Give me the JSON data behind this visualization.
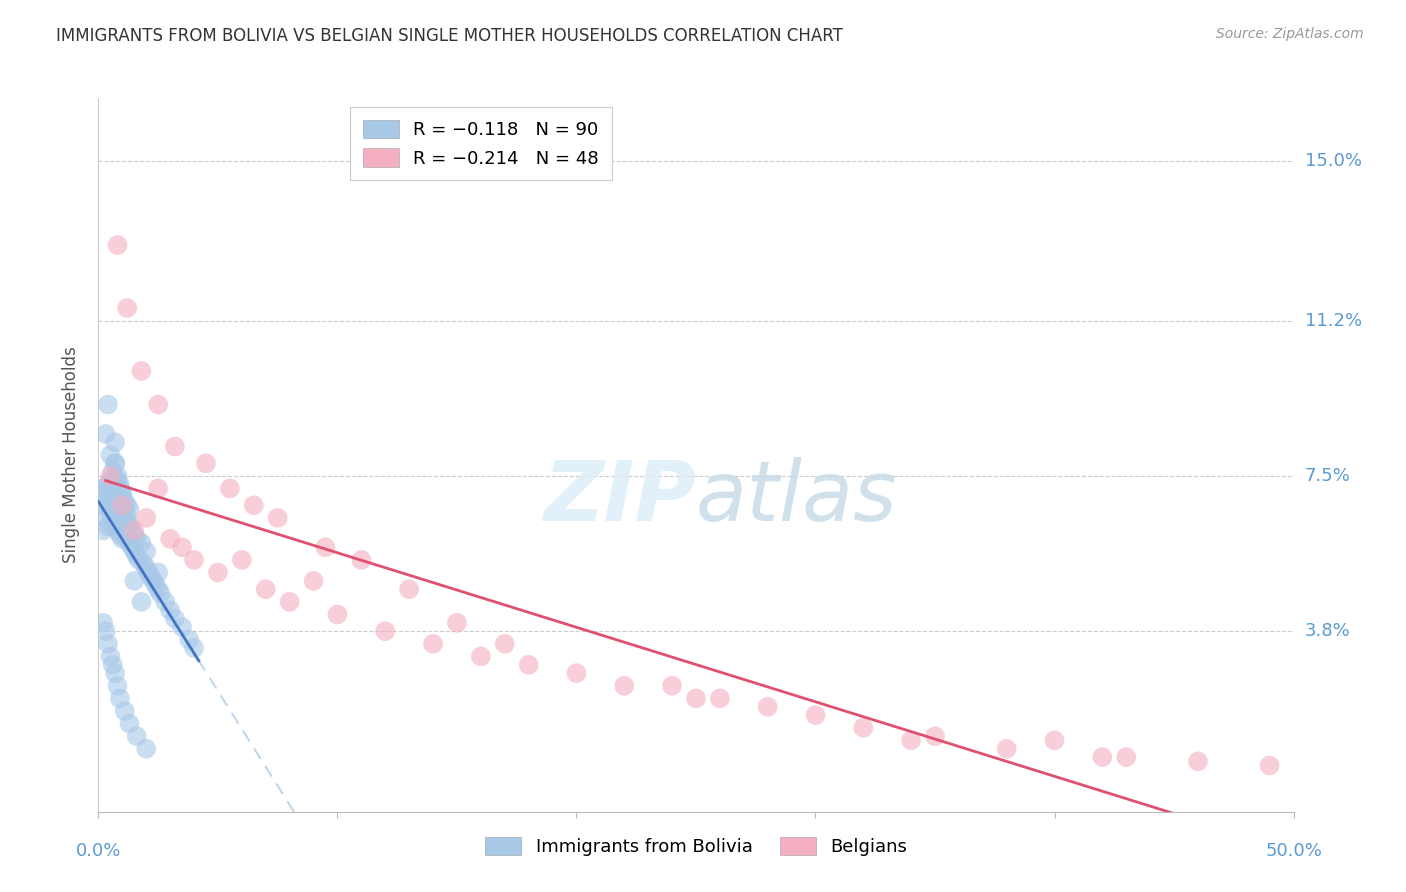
{
  "title": "IMMIGRANTS FROM BOLIVIA VS BELGIAN SINGLE MOTHER HOUSEHOLDS CORRELATION CHART",
  "source": "Source: ZipAtlas.com",
  "ylabel": "Single Mother Households",
  "ytick_labels": [
    "15.0%",
    "11.2%",
    "7.5%",
    "3.8%"
  ],
  "ytick_values": [
    0.15,
    0.112,
    0.075,
    0.038
  ],
  "xlim": [
    0.0,
    0.5
  ],
  "ylim": [
    -0.005,
    0.165
  ],
  "legend_line1": "R = −0.118   N = 90",
  "legend_line2": "R = −0.214   N = 48",
  "watermark_zip": "ZIP",
  "watermark_atlas": "atlas",
  "blue_color": "#a8c8e8",
  "pink_color": "#f4b0c0",
  "blue_line_color": "#4472c4",
  "pink_line_color": "#e05070",
  "blue_dash_color": "#c0d8ee",
  "title_color": "#333333",
  "axis_label_color": "#5b9bd5",
  "grid_color": "#cccccc",
  "bolivia_x": [
    0.001,
    0.002,
    0.002,
    0.003,
    0.003,
    0.004,
    0.004,
    0.004,
    0.005,
    0.005,
    0.005,
    0.005,
    0.006,
    0.006,
    0.006,
    0.006,
    0.007,
    0.007,
    0.007,
    0.007,
    0.007,
    0.008,
    0.008,
    0.008,
    0.008,
    0.009,
    0.009,
    0.009,
    0.009,
    0.01,
    0.01,
    0.01,
    0.01,
    0.011,
    0.011,
    0.012,
    0.012,
    0.012,
    0.013,
    0.013,
    0.013,
    0.014,
    0.014,
    0.015,
    0.015,
    0.016,
    0.016,
    0.017,
    0.018,
    0.019,
    0.02,
    0.02,
    0.021,
    0.022,
    0.023,
    0.024,
    0.025,
    0.025,
    0.026,
    0.028,
    0.03,
    0.032,
    0.035,
    0.038,
    0.04,
    0.003,
    0.004,
    0.005,
    0.006,
    0.007,
    0.007,
    0.008,
    0.009,
    0.01,
    0.011,
    0.012,
    0.015,
    0.018,
    0.002,
    0.003,
    0.004,
    0.005,
    0.006,
    0.007,
    0.008,
    0.009,
    0.011,
    0.013,
    0.016,
    0.02
  ],
  "bolivia_y": [
    0.068,
    0.062,
    0.072,
    0.065,
    0.071,
    0.068,
    0.063,
    0.073,
    0.069,
    0.066,
    0.071,
    0.074,
    0.063,
    0.067,
    0.07,
    0.072,
    0.064,
    0.068,
    0.071,
    0.073,
    0.078,
    0.062,
    0.066,
    0.069,
    0.074,
    0.061,
    0.065,
    0.068,
    0.072,
    0.06,
    0.064,
    0.067,
    0.071,
    0.063,
    0.069,
    0.06,
    0.064,
    0.068,
    0.059,
    0.063,
    0.067,
    0.058,
    0.062,
    0.057,
    0.061,
    0.056,
    0.06,
    0.055,
    0.059,
    0.054,
    0.053,
    0.057,
    0.052,
    0.051,
    0.05,
    0.049,
    0.048,
    0.052,
    0.047,
    0.045,
    0.043,
    0.041,
    0.039,
    0.036,
    0.034,
    0.085,
    0.092,
    0.08,
    0.076,
    0.083,
    0.078,
    0.075,
    0.073,
    0.07,
    0.067,
    0.065,
    0.05,
    0.045,
    0.04,
    0.038,
    0.035,
    0.032,
    0.03,
    0.028,
    0.025,
    0.022,
    0.019,
    0.016,
    0.013,
    0.01
  ],
  "belgians_x": [
    0.005,
    0.01,
    0.015,
    0.02,
    0.025,
    0.03,
    0.035,
    0.04,
    0.05,
    0.06,
    0.07,
    0.08,
    0.09,
    0.1,
    0.12,
    0.14,
    0.16,
    0.18,
    0.2,
    0.22,
    0.25,
    0.28,
    0.3,
    0.32,
    0.35,
    0.38,
    0.4,
    0.43,
    0.46,
    0.49,
    0.008,
    0.012,
    0.018,
    0.025,
    0.032,
    0.045,
    0.055,
    0.065,
    0.075,
    0.095,
    0.11,
    0.13,
    0.15,
    0.17,
    0.24,
    0.26,
    0.34,
    0.42
  ],
  "belgians_y": [
    0.075,
    0.068,
    0.062,
    0.065,
    0.072,
    0.06,
    0.058,
    0.055,
    0.052,
    0.055,
    0.048,
    0.045,
    0.05,
    0.042,
    0.038,
    0.035,
    0.032,
    0.03,
    0.028,
    0.025,
    0.022,
    0.02,
    0.018,
    0.015,
    0.013,
    0.01,
    0.012,
    0.008,
    0.007,
    0.006,
    0.13,
    0.115,
    0.1,
    0.092,
    0.082,
    0.078,
    0.072,
    0.068,
    0.065,
    0.058,
    0.055,
    0.048,
    0.04,
    0.035,
    0.025,
    0.022,
    0.012,
    0.008
  ]
}
